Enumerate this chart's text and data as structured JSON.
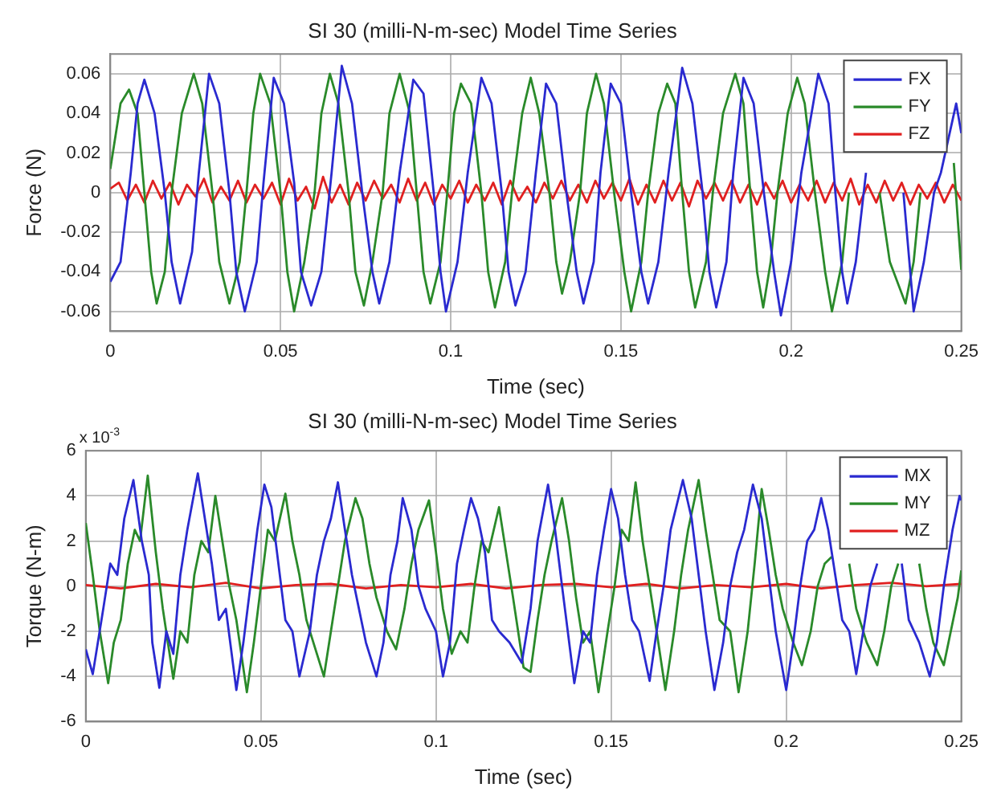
{
  "chart_data": [
    {
      "type": "line",
      "title": "SI 30 (milli-N-m-sec) Model Time Series",
      "xlabel": "Time (sec)",
      "ylabel": "Force (N)",
      "xlim": [
        0,
        0.25
      ],
      "xticks": [
        0,
        0.05,
        0.1,
        0.15,
        0.2,
        0.25
      ],
      "ylim": [
        -0.07,
        0.07
      ],
      "yticks": [
        -0.06,
        -0.04,
        -0.02,
        0,
        0.02,
        0.04,
        0.06
      ],
      "grid": true,
      "legend": "top right",
      "series": [
        {
          "name": "FX",
          "color": "#2a2ad0",
          "x": [
            0,
            0.003,
            0.006,
            0.008,
            0.01,
            0.013,
            0.016,
            0.018,
            0.0205,
            0.024,
            0.026,
            0.029,
            0.032,
            0.035,
            0.037,
            0.0395,
            0.043,
            0.045,
            0.048,
            0.051,
            0.054,
            0.056,
            0.059,
            0.062,
            0.065,
            0.068,
            0.071,
            0.074,
            0.077,
            0.079,
            0.082,
            0.085,
            0.089,
            0.092,
            0.095,
            0.097,
            0.0986,
            0.102,
            0.105,
            0.109,
            0.112,
            0.115,
            0.117,
            0.119,
            0.122,
            0.125,
            0.128,
            0.131,
            0.134,
            0.137,
            0.139,
            0.142,
            0.144,
            0.147,
            0.15,
            0.153,
            0.156,
            0.158,
            0.161,
            0.164,
            0.168,
            0.171,
            0.174,
            0.176,
            0.178,
            0.181,
            0.183,
            0.186,
            0.189,
            0.192,
            0.195,
            0.197,
            0.2,
            0.203,
            0.208,
            0.211,
            0.213,
            0.215,
            0.2165,
            0.219,
            0.222,
            0.227,
            0.23,
            0.233,
            0.235,
            0.236,
            0.239,
            0.242,
            0.244,
            0.2485,
            0.25
          ],
          "values": [
            -0.045,
            -0.035,
            0.01,
            0.045,
            0.057,
            0.04,
            0.0,
            -0.035,
            -0.056,
            -0.03,
            0.01,
            0.06,
            0.045,
            0.0,
            -0.04,
            -0.06,
            -0.035,
            0.005,
            0.058,
            0.045,
            0.005,
            -0.04,
            -0.057,
            -0.04,
            0.01,
            0.064,
            0.045,
            0.0,
            -0.04,
            -0.056,
            -0.035,
            0.01,
            0.057,
            0.05,
            0.0,
            -0.04,
            -0.06,
            -0.035,
            0.01,
            0.058,
            0.045,
            0.0,
            -0.04,
            -0.057,
            -0.04,
            0.01,
            0.055,
            0.045,
            0.0,
            -0.04,
            -0.056,
            -0.035,
            0.01,
            0.055,
            0.045,
            0.0,
            -0.04,
            -0.056,
            -0.035,
            0.01,
            0.063,
            0.045,
            0.0,
            -0.04,
            -0.058,
            -0.035,
            0.01,
            0.058,
            0.045,
            0.0,
            -0.04,
            -0.062,
            -0.035,
            0.01,
            0.06,
            0.045,
            0.0,
            -0.04,
            -0.056,
            -0.035,
            0.01,
            null,
            null,
            0.0,
            -0.04,
            -0.06,
            -0.035,
            0.0,
            0.01,
            0.045,
            0.03
          ]
        },
        {
          "name": "FY",
          "color": "#2a8a2a",
          "x": [
            0,
            0.003,
            0.0055,
            0.008,
            0.01,
            0.012,
            0.0136,
            0.016,
            0.018,
            0.021,
            0.0245,
            0.027,
            0.03,
            0.032,
            0.035,
            0.038,
            0.04,
            0.042,
            0.044,
            0.047,
            0.05,
            0.052,
            0.054,
            0.057,
            0.06,
            0.062,
            0.0645,
            0.067,
            0.07,
            0.072,
            0.0745,
            0.077,
            0.08,
            0.082,
            0.085,
            0.088,
            0.09,
            0.092,
            0.094,
            0.097,
            0.099,
            0.101,
            0.103,
            0.106,
            0.109,
            0.111,
            0.113,
            0.116,
            0.118,
            0.121,
            0.1235,
            0.126,
            0.129,
            0.131,
            0.1327,
            0.135,
            0.138,
            0.14,
            0.1427,
            0.145,
            0.148,
            0.151,
            0.153,
            0.156,
            0.158,
            0.161,
            0.1636,
            0.166,
            0.168,
            0.17,
            0.1718,
            0.175,
            0.177,
            0.18,
            0.1836,
            0.186,
            0.188,
            0.19,
            0.1918,
            0.194,
            0.196,
            0.199,
            0.2018,
            0.204,
            0.207,
            0.21,
            0.212,
            0.215,
            0.217,
            0.2215,
            0.226,
            0.229,
            0.2336,
            0.236,
            0.238,
            0.242,
            0.2478,
            0.25
          ],
          "values": [
            0.012,
            0.045,
            0.052,
            0.04,
            0.0,
            -0.04,
            -0.056,
            -0.04,
            0.0,
            0.04,
            0.06,
            0.045,
            0.0,
            -0.035,
            -0.056,
            -0.035,
            0.0,
            0.04,
            0.06,
            0.045,
            0.0,
            -0.04,
            -0.06,
            -0.035,
            0.0,
            0.04,
            0.06,
            0.045,
            0.0,
            -0.04,
            -0.057,
            -0.035,
            0.0,
            0.04,
            0.06,
            0.04,
            0.0,
            -0.04,
            -0.056,
            -0.035,
            0.0,
            0.04,
            0.055,
            0.045,
            0.0,
            -0.04,
            -0.058,
            -0.035,
            0.0,
            0.04,
            0.058,
            0.04,
            0.0,
            -0.035,
            -0.051,
            -0.035,
            0.0,
            0.04,
            0.06,
            0.045,
            0.0,
            -0.04,
            -0.06,
            -0.035,
            0.0,
            0.04,
            0.055,
            0.045,
            0.0,
            -0.04,
            -0.058,
            -0.035,
            0.0,
            0.04,
            0.06,
            0.045,
            0.0,
            -0.04,
            -0.058,
            -0.035,
            0.0,
            0.04,
            0.058,
            0.045,
            0.0,
            -0.04,
            -0.06,
            -0.035,
            0.0,
            null,
            0.0,
            -0.035,
            -0.056,
            -0.035,
            0.0,
            null,
            0.015,
            -0.039
          ]
        },
        {
          "name": "FZ",
          "color": "#e02020",
          "x": [
            0,
            0.0025,
            0.005,
            0.0075,
            0.01,
            0.0125,
            0.015,
            0.0175,
            0.02,
            0.0225,
            0.025,
            0.0275,
            0.03,
            0.0325,
            0.035,
            0.0375,
            0.04,
            0.0425,
            0.045,
            0.0475,
            0.05,
            0.0525,
            0.055,
            0.0575,
            0.06,
            0.0625,
            0.065,
            0.0675,
            0.07,
            0.0725,
            0.075,
            0.0775,
            0.08,
            0.0825,
            0.085,
            0.0875,
            0.09,
            0.0925,
            0.095,
            0.0975,
            0.1,
            0.1025,
            0.105,
            0.1075,
            0.11,
            0.1125,
            0.115,
            0.1175,
            0.12,
            0.1225,
            0.125,
            0.1275,
            0.13,
            0.1325,
            0.135,
            0.1375,
            0.14,
            0.1425,
            0.145,
            0.1475,
            0.15,
            0.1525,
            0.155,
            0.1575,
            0.16,
            0.1625,
            0.165,
            0.1675,
            0.17,
            0.1725,
            0.175,
            0.1775,
            0.18,
            0.1825,
            0.185,
            0.1875,
            0.19,
            0.1925,
            0.195,
            0.1975,
            0.2,
            0.2025,
            0.205,
            0.2075,
            0.21,
            0.2125,
            0.215,
            0.2175,
            0.22,
            0.2225,
            0.225,
            0.2275,
            0.23,
            0.2325,
            0.235,
            0.2375,
            0.24,
            0.2425,
            0.245,
            0.2475,
            0.25
          ],
          "values": [
            0.002,
            0.005,
            -0.004,
            0.004,
            -0.005,
            0.006,
            -0.003,
            0.005,
            -0.006,
            0.004,
            -0.002,
            0.007,
            -0.005,
            0.003,
            -0.004,
            0.006,
            -0.005,
            0.004,
            -0.003,
            0.005,
            -0.006,
            0.007,
            -0.004,
            0.003,
            -0.008,
            0.008,
            -0.005,
            0.004,
            -0.006,
            0.005,
            -0.004,
            0.006,
            -0.003,
            0.004,
            -0.005,
            0.007,
            -0.004,
            0.005,
            -0.006,
            0.004,
            -0.003,
            0.006,
            -0.005,
            0.004,
            -0.004,
            0.005,
            -0.006,
            0.006,
            -0.004,
            0.003,
            -0.005,
            0.005,
            -0.003,
            0.006,
            -0.004,
            0.004,
            -0.005,
            0.006,
            -0.003,
            0.005,
            -0.004,
            0.007,
            -0.006,
            0.004,
            -0.005,
            0.006,
            -0.004,
            0.005,
            -0.007,
            0.006,
            -0.003,
            0.005,
            -0.004,
            0.006,
            -0.005,
            0.004,
            -0.006,
            0.005,
            -0.003,
            0.006,
            -0.005,
            0.004,
            -0.004,
            0.006,
            -0.005,
            0.005,
            -0.004,
            0.007,
            -0.006,
            0.004,
            -0.005,
            0.006,
            -0.004,
            0.005,
            -0.006,
            0.004,
            -0.003,
            0.005,
            -0.005,
            0.004,
            -0.004
          ]
        }
      ]
    },
    {
      "type": "line",
      "title": "SI 30 (milli-N-m-sec) Model Time Series",
      "xlabel": "Time (sec)",
      "ylabel": "Torque (N-m)",
      "annotations": [
        "x 10$^{-3}$"
      ],
      "xlim": [
        0,
        0.25
      ],
      "xticks": [
        0,
        0.05,
        0.1,
        0.15,
        0.2,
        0.25
      ],
      "ylim": [
        -6,
        6
      ],
      "yticks": [
        -6,
        -4,
        -2,
        0,
        2,
        4,
        6
      ],
      "grid": true,
      "legend": "top right",
      "series": [
        {
          "name": "MX",
          "color": "#2a2ad0",
          "x": [
            0,
            0.002,
            0.005,
            0.007,
            0.009,
            0.011,
            0.0136,
            0.016,
            0.018,
            0.019,
            0.021,
            0.023,
            0.025,
            0.027,
            0.029,
            0.032,
            0.034,
            0.036,
            0.038,
            0.04,
            0.043,
            0.045,
            0.047,
            0.049,
            0.051,
            0.053,
            0.055,
            0.057,
            0.059,
            0.061,
            0.064,
            0.066,
            0.068,
            0.07,
            0.072,
            0.074,
            0.076,
            0.078,
            0.08,
            0.083,
            0.085,
            0.087,
            0.089,
            0.0905,
            0.093,
            0.095,
            0.097,
            0.1,
            0.102,
            0.104,
            0.106,
            0.108,
            0.11,
            0.112,
            0.114,
            0.116,
            0.118,
            0.121,
            0.1245,
            0.127,
            0.129,
            0.132,
            0.134,
            0.136,
            0.1395,
            0.142,
            0.144,
            0.146,
            0.148,
            0.15,
            0.152,
            0.154,
            0.156,
            0.158,
            0.161,
            0.163,
            0.165,
            0.167,
            0.1705,
            0.173,
            0.175,
            0.177,
            0.1795,
            0.182,
            0.184,
            0.186,
            0.188,
            0.1905,
            0.193,
            0.195,
            0.197,
            0.2,
            0.202,
            0.204,
            0.206,
            0.208,
            0.21,
            0.212,
            0.214,
            0.216,
            0.218,
            0.22,
            0.222,
            0.224,
            0.226,
            0.2305,
            0.233,
            0.235,
            0.238,
            0.241,
            0.243,
            0.245,
            0.2475,
            0.2495,
            0.25
          ],
          "values": [
            -2.8,
            -3.9,
            -1.0,
            1.0,
            0.5,
            3.0,
            4.7,
            2.0,
            0.5,
            -2.5,
            -4.5,
            -2.0,
            -3.0,
            0.5,
            2.5,
            5.0,
            3.0,
            1.0,
            -1.5,
            -1.0,
            -4.6,
            -2.5,
            0.0,
            2.5,
            4.5,
            3.5,
            1.0,
            -1.5,
            -2.0,
            -4.0,
            -2.0,
            0.5,
            2.0,
            3.0,
            4.6,
            2.5,
            0.5,
            -1.0,
            -2.5,
            -4.0,
            -2.5,
            0.5,
            2.0,
            3.9,
            2.5,
            0.0,
            -1.0,
            -2.0,
            -4.0,
            -2.5,
            1.0,
            2.5,
            3.9,
            3.0,
            1.5,
            -1.5,
            -2.0,
            -2.5,
            -3.4,
            -1.0,
            2.0,
            4.5,
            2.5,
            0.0,
            -4.3,
            -2.0,
            -2.5,
            0.5,
            2.5,
            4.3,
            3.0,
            0.5,
            -1.5,
            -2.0,
            -4.2,
            -2.0,
            0.0,
            2.5,
            4.7,
            3.0,
            0.5,
            -2.0,
            -4.6,
            -2.5,
            0.0,
            1.5,
            2.5,
            4.5,
            3.0,
            0.5,
            -2.0,
            -4.6,
            -2.5,
            0.0,
            2.0,
            2.5,
            3.9,
            2.5,
            0.5,
            -1.5,
            -2.0,
            -3.9,
            -2.0,
            0.0,
            1.0,
            null,
            1.0,
            -1.5,
            -2.5,
            -4.0,
            -2.5,
            0.0,
            2.5,
            4.0,
            3.8
          ]
        },
        {
          "name": "MY",
          "color": "#2a8a2a",
          "x": [
            0,
            0.002,
            0.004,
            0.0064,
            0.008,
            0.01,
            0.012,
            0.014,
            0.0155,
            0.0177,
            0.02,
            0.022,
            0.025,
            0.027,
            0.029,
            0.031,
            0.033,
            0.035,
            0.037,
            0.039,
            0.041,
            0.043,
            0.046,
            0.048,
            0.05,
            0.052,
            0.054,
            0.057,
            0.059,
            0.061,
            0.063,
            0.065,
            0.068,
            0.07,
            0.072,
            0.074,
            0.077,
            0.079,
            0.081,
            0.083,
            0.086,
            0.0886,
            0.091,
            0.093,
            0.095,
            0.098,
            0.1,
            0.102,
            0.1045,
            0.107,
            0.109,
            0.111,
            0.113,
            0.115,
            0.118,
            0.12,
            0.122,
            0.125,
            0.127,
            0.129,
            0.131,
            0.133,
            0.136,
            0.138,
            0.14,
            0.142,
            0.144,
            0.1464,
            0.149,
            0.151,
            0.153,
            0.155,
            0.157,
            0.159,
            0.161,
            0.163,
            0.1655,
            0.168,
            0.17,
            0.172,
            0.175,
            0.177,
            0.179,
            0.181,
            0.184,
            0.1864,
            0.189,
            0.191,
            0.193,
            0.195,
            0.197,
            0.199,
            0.202,
            0.2045,
            0.207,
            0.209,
            0.211,
            0.213,
            0.2155,
            0.218,
            0.22,
            0.223,
            0.226,
            0.228,
            0.23,
            0.232,
            0.235,
            0.238,
            0.24,
            0.242,
            0.245,
            0.247,
            0.249,
            0.25
          ],
          "values": [
            2.8,
            0.5,
            -2.0,
            -4.3,
            -2.5,
            -1.5,
            1.0,
            2.5,
            2.0,
            4.9,
            1.5,
            -1.0,
            -4.1,
            -2.0,
            -2.5,
            0.5,
            2.0,
            1.5,
            4.0,
            2.0,
            0.0,
            -1.5,
            -4.7,
            -2.5,
            0.0,
            2.5,
            2.0,
            4.1,
            2.0,
            0.5,
            -1.5,
            -2.5,
            -4.0,
            -2.0,
            0.0,
            2.0,
            3.9,
            3.0,
            1.0,
            -0.5,
            -2.0,
            -2.8,
            -1.0,
            1.0,
            2.5,
            3.8,
            1.5,
            -1.0,
            -3.0,
            -2.0,
            -2.5,
            0.0,
            2.0,
            1.5,
            3.5,
            1.5,
            -0.5,
            -3.6,
            -3.8,
            -1.5,
            0.5,
            2.0,
            3.9,
            2.0,
            -0.5,
            -2.5,
            -2.0,
            -4.7,
            -2.0,
            0.0,
            2.5,
            2.0,
            4.6,
            2.0,
            0.0,
            -2.0,
            -4.6,
            -2.0,
            0.5,
            2.5,
            4.7,
            2.5,
            0.5,
            -1.5,
            -2.0,
            -4.7,
            -2.0,
            1.0,
            4.3,
            2.5,
            0.5,
            -1.0,
            -2.5,
            -3.5,
            -2.0,
            0.0,
            1.0,
            1.3,
            null,
            1.0,
            -1.0,
            -2.5,
            -3.5,
            -2.0,
            0.0,
            1.0,
            null,
            1.0,
            -1.0,
            -2.5,
            -3.5,
            -2.0,
            -0.5,
            0.7
          ]
        },
        {
          "name": "MZ",
          "color": "#e02020",
          "x": [
            0,
            0.01,
            0.02,
            0.03,
            0.04,
            0.05,
            0.06,
            0.07,
            0.08,
            0.09,
            0.1,
            0.11,
            0.12,
            0.13,
            0.14,
            0.15,
            0.16,
            0.17,
            0.18,
            0.19,
            0.2,
            0.21,
            0.22,
            0.23,
            0.24,
            0.25
          ],
          "values": [
            0.05,
            -0.1,
            0.1,
            -0.05,
            0.15,
            -0.1,
            0.05,
            0.1,
            -0.1,
            0.05,
            -0.05,
            0.1,
            -0.1,
            0.05,
            0.1,
            -0.05,
            0.1,
            -0.1,
            0.05,
            -0.05,
            0.1,
            -0.1,
            0.05,
            0.15,
            0.0,
            0.1
          ]
        }
      ]
    }
  ]
}
